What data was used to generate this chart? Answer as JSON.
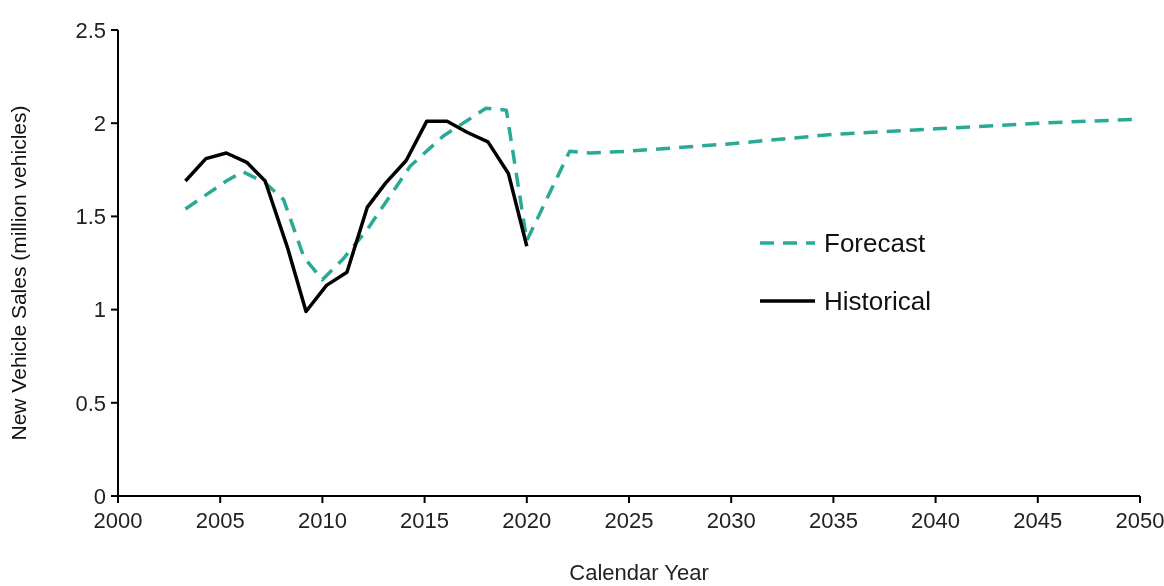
{
  "chart_data": {
    "type": "line",
    "xlabel": "Calendar Year",
    "ylabel": "New Vehicle Sales (million vehicles)",
    "xlim": [
      2000,
      2050
    ],
    "xticks": [
      2000,
      2005,
      2010,
      2015,
      2020,
      2025,
      2030,
      2035,
      2040,
      2045,
      2050
    ],
    "ylim": [
      0,
      2.5
    ],
    "yticks": [
      0,
      0.5,
      1,
      1.5,
      2,
      2.5
    ],
    "grid": false,
    "legend": "right",
    "marker": "none",
    "series": [
      {
        "name": "Forecast",
        "color": "#2aaa96",
        "line_style": "dashed",
        "x": [
          2003.3,
          2005.3,
          2006.1,
          2007.2,
          2008.1,
          2009.1,
          2010.0,
          2011.0,
          2012.2,
          2014.3,
          2015.9,
          2018.0,
          2019.0,
          2020.0,
          2022.1,
          2023.1,
          2025,
          2030,
          2035,
          2040,
          2045,
          2049.6
        ],
        "values": [
          1.54,
          1.69,
          1.74,
          1.68,
          1.59,
          1.28,
          1.16,
          1.27,
          1.43,
          1.77,
          1.93,
          2.08,
          2.07,
          1.37,
          1.85,
          1.84,
          1.85,
          1.89,
          1.94,
          1.97,
          2.0,
          2.02
        ]
      },
      {
        "name": "Historical",
        "color": "#000000",
        "line_style": "solid",
        "x": [
          2003.3,
          2004.3,
          2005.3,
          2006.3,
          2007.2,
          2008.3,
          2009.2,
          2010.2,
          2011.2,
          2012.2,
          2013.1,
          2014.1,
          2015.1,
          2016.1,
          2017.1,
          2018.1,
          2019.1,
          2020.0
        ],
        "values": [
          1.69,
          1.81,
          1.84,
          1.79,
          1.69,
          1.33,
          0.99,
          1.13,
          1.2,
          1.55,
          1.68,
          1.8,
          2.01,
          2.01,
          1.95,
          1.9,
          1.73,
          1.34
        ]
      }
    ]
  }
}
